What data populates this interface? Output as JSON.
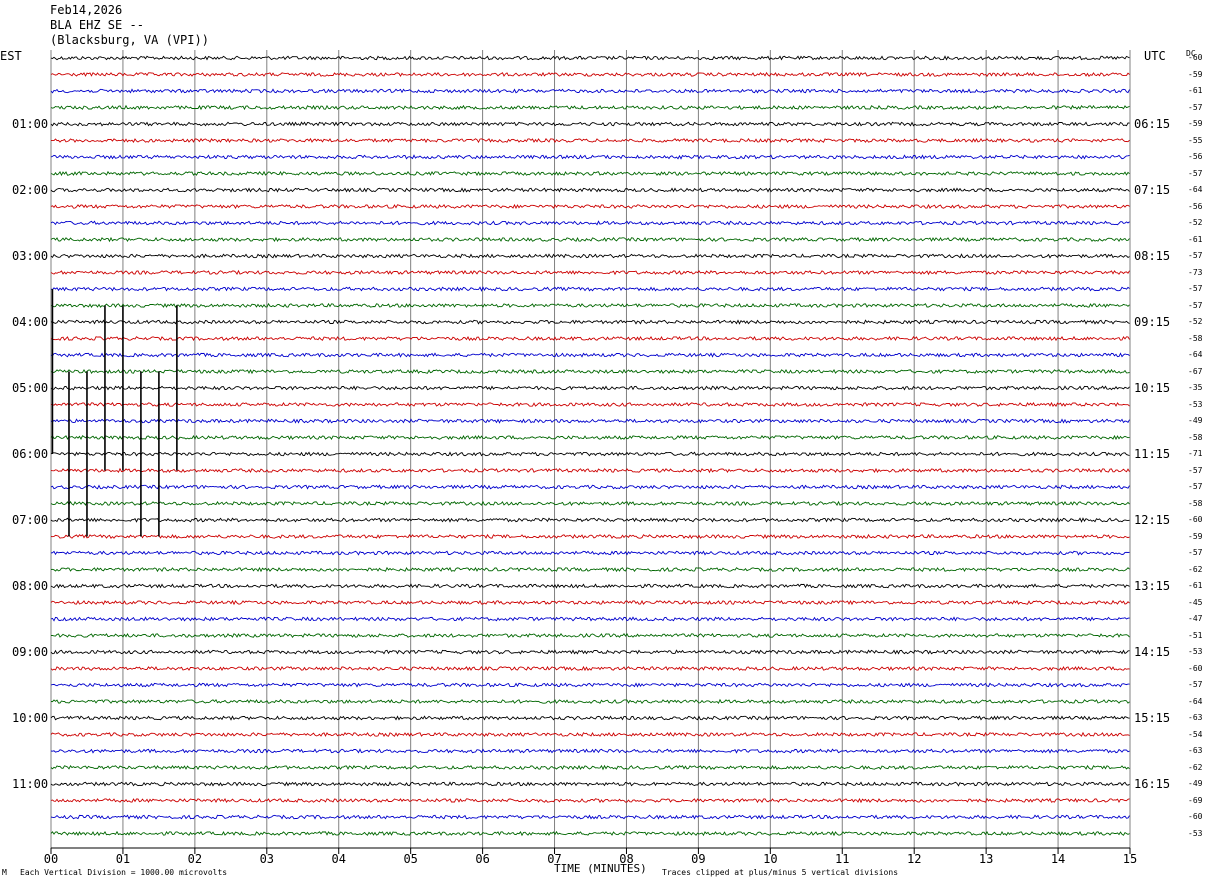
{
  "header": {
    "date": "Feb14,2026",
    "station": "BLA EHZ SE --",
    "location": "(Blacksburg, VA (VPI))"
  },
  "axes": {
    "left_zone": "EST",
    "right_zone": "UTC",
    "dc_label": "DC",
    "x_title": "TIME (MINUTES)"
  },
  "footer": {
    "scale_note": "Each Vertical Division = 1000.00 microvolts",
    "clip_note": "Traces clipped at plus/minus 5 vertical divisions",
    "mark": "M"
  },
  "colors": {
    "trace_cycle": [
      "#000000",
      "#cc0000",
      "#0000cc",
      "#006600"
    ],
    "grid": "#808080"
  },
  "chart_data": {
    "type": "line",
    "title": "",
    "xlabel": "TIME (MINUTES)",
    "x_ticks": [
      "00",
      "01",
      "02",
      "03",
      "04",
      "05",
      "06",
      "07",
      "08",
      "09",
      "10",
      "11",
      "12",
      "13",
      "14",
      "15"
    ],
    "xlim": [
      0,
      15
    ],
    "left_hour_labels": [
      "01:00",
      "02:00",
      "03:00",
      "04:00",
      "05:00",
      "06:00",
      "07:00",
      "08:00",
      "09:00",
      "10:00",
      "11:00"
    ],
    "right_hour_labels": [
      "06:15",
      "07:15",
      "08:15",
      "09:15",
      "10:15",
      "11:15",
      "12:15",
      "13:15",
      "14:15",
      "15:15",
      "16:15"
    ],
    "trace_count": 48,
    "dc_offsets": [
      "-60",
      "-59",
      "-61",
      "-57",
      "-59",
      "-55",
      "-56",
      "-57",
      "-64",
      "-56",
      "-52",
      "-61",
      "-57",
      "-73",
      "-57",
      "-57",
      "-52",
      "-58",
      "-64",
      "-67",
      "-35",
      "-53",
      "-49",
      "-58",
      "-71",
      "-57",
      "-57",
      "-58",
      "-60",
      "-59",
      "-57",
      "-62",
      "-61",
      "-45",
      "-47",
      "-51",
      "-53",
      "-60",
      "-57",
      "-64",
      "-63",
      "-54",
      "-63",
      "-62",
      "-49",
      "-69",
      "-60",
      "-53"
    ],
    "events": [
      {
        "trace": 19,
        "minute": 0.02
      },
      {
        "trace": 20,
        "minute": 0.75
      },
      {
        "trace": 20,
        "minute": 1.0
      },
      {
        "trace": 20,
        "minute": 1.75
      },
      {
        "trace": 24,
        "minute": 0.25
      },
      {
        "trace": 24,
        "minute": 0.5
      },
      {
        "trace": 24,
        "minute": 1.25
      },
      {
        "trace": 24,
        "minute": 1.5
      }
    ]
  }
}
